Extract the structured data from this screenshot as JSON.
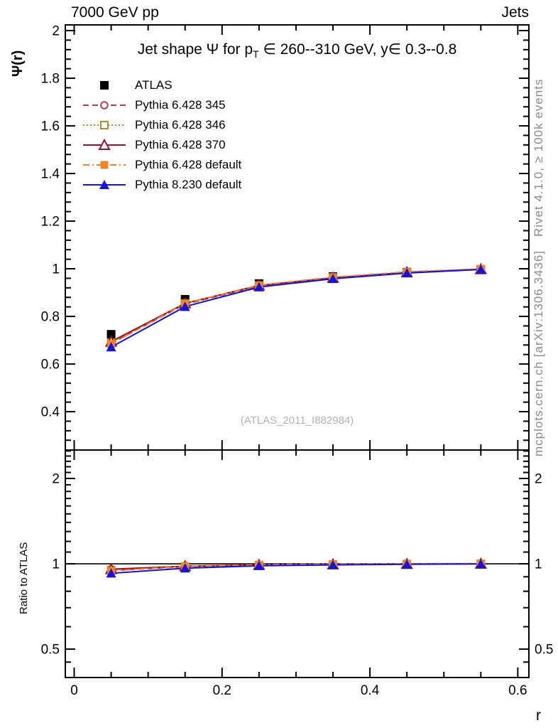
{
  "header": {
    "left": "7000 GeV pp",
    "right": "Jets"
  },
  "side_notes": {
    "top": "Rivet 4.1.0, ≥ 100k events",
    "bottom": "mcplots.cern.ch [arXiv:1306.3436]"
  },
  "watermark": "(ATLAS_2011_I882984)",
  "chart_data": {
    "type": "line",
    "title": {
      "pre": "Jet shape Ψ for p",
      "sub": "T",
      "post": " ∈ 260--310 GeV, y∈ 0.3--0.8"
    },
    "xlabel": "r",
    "ylabel_main": "Ψ(r)",
    "ylabel_ratio": "Ratio to ATLAS",
    "x_values": [
      0.05,
      0.15,
      0.25,
      0.35,
      0.45,
      0.55
    ],
    "axes": {
      "x": {
        "min": -0.012,
        "max": 0.615,
        "majors": [
          0,
          0.2,
          0.4,
          0.6
        ],
        "labels": [
          "0",
          "0.2",
          "0.4",
          "0.6"
        ],
        "minor_step": 0.05
      },
      "y_main": {
        "scale": "linear",
        "min": 0.239,
        "max": 2.024,
        "majors": [
          0.4,
          0.6,
          0.8,
          1,
          1.2,
          1.4,
          1.6,
          1.8,
          2
        ],
        "labels": [
          "0.4",
          "0.6",
          "0.8",
          "1",
          "1.2",
          "1.4",
          "1.6",
          "1.8",
          "2"
        ],
        "minor_step": 0.04
      },
      "y_ratio": {
        "scale": "log",
        "min": 0.397,
        "max": 2.52,
        "majors": [
          0.5,
          1,
          2
        ],
        "labels": [
          "0.5",
          "1",
          "2"
        ],
        "minors": [
          0.45,
          0.6,
          0.7,
          0.8,
          0.9,
          1.1,
          1.2,
          1.3,
          1.4,
          1.5,
          1.6,
          1.7,
          1.8,
          1.9,
          2.1,
          2.2,
          2.3,
          2.4,
          2.5
        ]
      }
    },
    "reference_line": {
      "y": 1,
      "color": "#000000"
    },
    "series": [
      {
        "name": "ATLAS",
        "color": "#000000",
        "marker": "filled-square",
        "line": "none",
        "main": [
          0.725,
          0.872,
          0.938,
          0.967,
          0.986,
          0.998
        ],
        "ratio": null
      },
      {
        "name": "Pythia 6.428 345",
        "color": "#bf3a4c",
        "marker": "open-circle",
        "line": "dashed",
        "main": [
          0.687,
          0.851,
          0.927,
          0.961,
          0.984,
          0.998
        ],
        "ratio": [
          0.947,
          0.976,
          0.988,
          0.994,
          0.998,
          1.0
        ]
      },
      {
        "name": "Pythia 6.428 346",
        "color": "#a2912f",
        "marker": "open-square",
        "line": "dotted",
        "main": [
          0.69,
          0.853,
          0.928,
          0.961,
          0.984,
          0.998
        ],
        "ratio": [
          0.951,
          0.978,
          0.989,
          0.994,
          0.998,
          1.0
        ]
      },
      {
        "name": "Pythia 6.428 370",
        "color": "#9c1127",
        "marker": "open-triangle",
        "line": "solid",
        "main": [
          0.694,
          0.855,
          0.93,
          0.962,
          0.985,
          0.998
        ],
        "ratio": [
          0.957,
          0.981,
          0.991,
          0.995,
          0.999,
          1.0
        ]
      },
      {
        "name": "Pythia 6.428 default",
        "color": "#f08324",
        "marker": "filled-square",
        "line": "dashdot",
        "main": [
          0.684,
          0.855,
          0.931,
          0.965,
          0.987,
          1.0
        ],
        "ratio": [
          0.944,
          0.981,
          0.993,
          0.998,
          1.001,
          1.002
        ]
      },
      {
        "name": "Pythia 8.230 default",
        "color": "#1414dd",
        "marker": "filled-triangle",
        "line": "solid",
        "main": [
          0.671,
          0.841,
          0.923,
          0.958,
          0.982,
          0.997
        ],
        "ratio": [
          0.926,
          0.965,
          0.984,
          0.991,
          0.996,
          0.999
        ]
      }
    ]
  }
}
